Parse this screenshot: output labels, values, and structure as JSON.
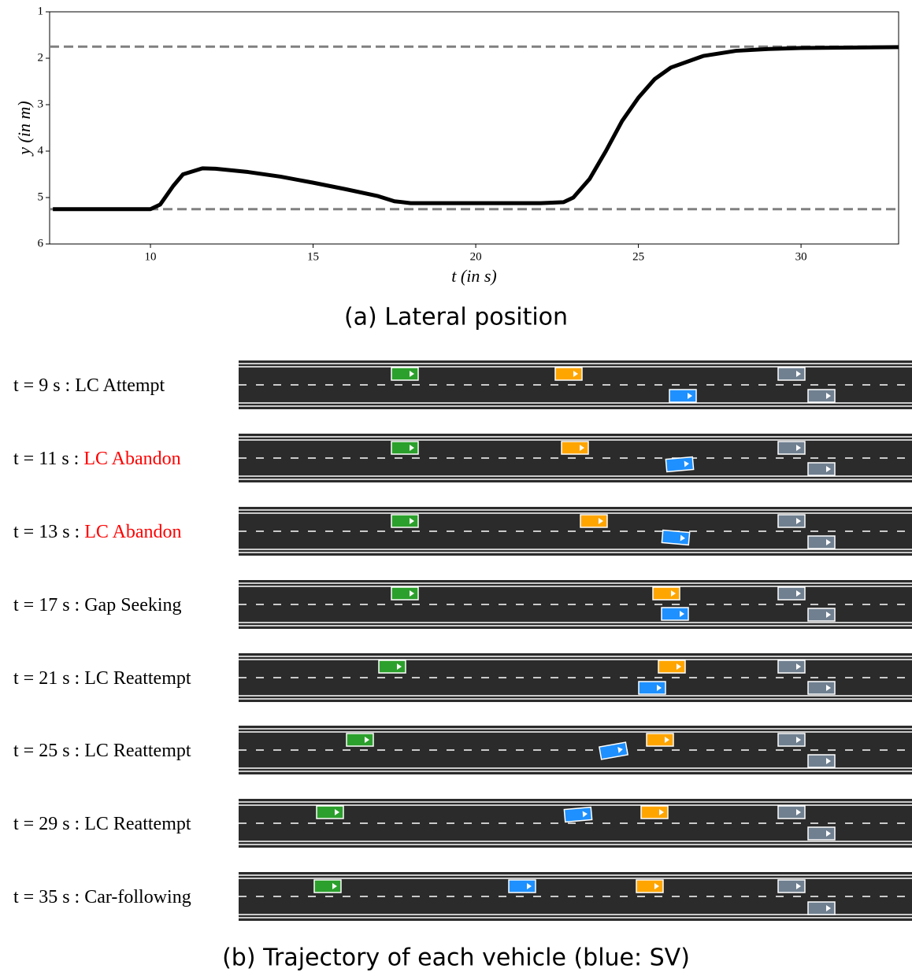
{
  "chart_data": {
    "type": "line",
    "xlabel": "t (in s)",
    "ylabel": "y (in m)",
    "x": [
      7,
      10,
      10.3,
      10.7,
      11,
      11.6,
      12,
      13,
      14,
      15,
      16,
      17,
      17.5,
      18,
      20,
      22,
      22.7,
      23,
      23.5,
      24,
      24.5,
      25,
      25.5,
      26,
      27,
      28,
      29,
      30,
      33
    ],
    "series": [
      {
        "color": "#000000",
        "values": [
          5.25,
          5.25,
          5.15,
          4.75,
          4.5,
          4.37,
          4.38,
          4.45,
          4.55,
          4.68,
          4.82,
          4.97,
          5.08,
          5.12,
          5.12,
          5.12,
          5.1,
          5.0,
          4.6,
          4.0,
          3.35,
          2.85,
          2.45,
          2.2,
          1.95,
          1.84,
          1.8,
          1.78,
          1.76
        ]
      }
    ],
    "reference_lines": [
      1.75,
      5.25
    ],
    "reference_color": "#808080",
    "xlim": [
      6.9,
      33
    ],
    "ylim": [
      6,
      1
    ],
    "xticks": [
      10,
      15,
      20,
      25,
      30
    ],
    "yticks": [
      1,
      2,
      3,
      4,
      5,
      6
    ]
  },
  "caption_a": "(a) Lateral position",
  "scenes": [
    {
      "time": "t = 9 s : ",
      "phase": "LC Attempt",
      "phase_color": "#000000"
    },
    {
      "time": "t = 11 s : ",
      "phase": "LC Abandon",
      "phase_color": "#ff0000"
    },
    {
      "time": "t = 13 s : ",
      "phase": "LC Abandon",
      "phase_color": "#ff0000"
    },
    {
      "time": "t = 17 s : ",
      "phase": "Gap Seeking",
      "phase_color": "#000000"
    },
    {
      "time": "t = 21 s : ",
      "phase": "LC Reattempt",
      "phase_color": "#000000"
    },
    {
      "time": "t = 25 s : ",
      "phase": "LC Reattempt",
      "phase_color": "#000000"
    },
    {
      "time": "t = 29 s : ",
      "phase": "LC Reattempt",
      "phase_color": "#000000"
    },
    {
      "time": "t = 35 s : ",
      "phase": "Car-following",
      "phase_color": "#000000"
    }
  ],
  "caption_b": "(b) Trajectory of each vehicle (blue: SV)"
}
